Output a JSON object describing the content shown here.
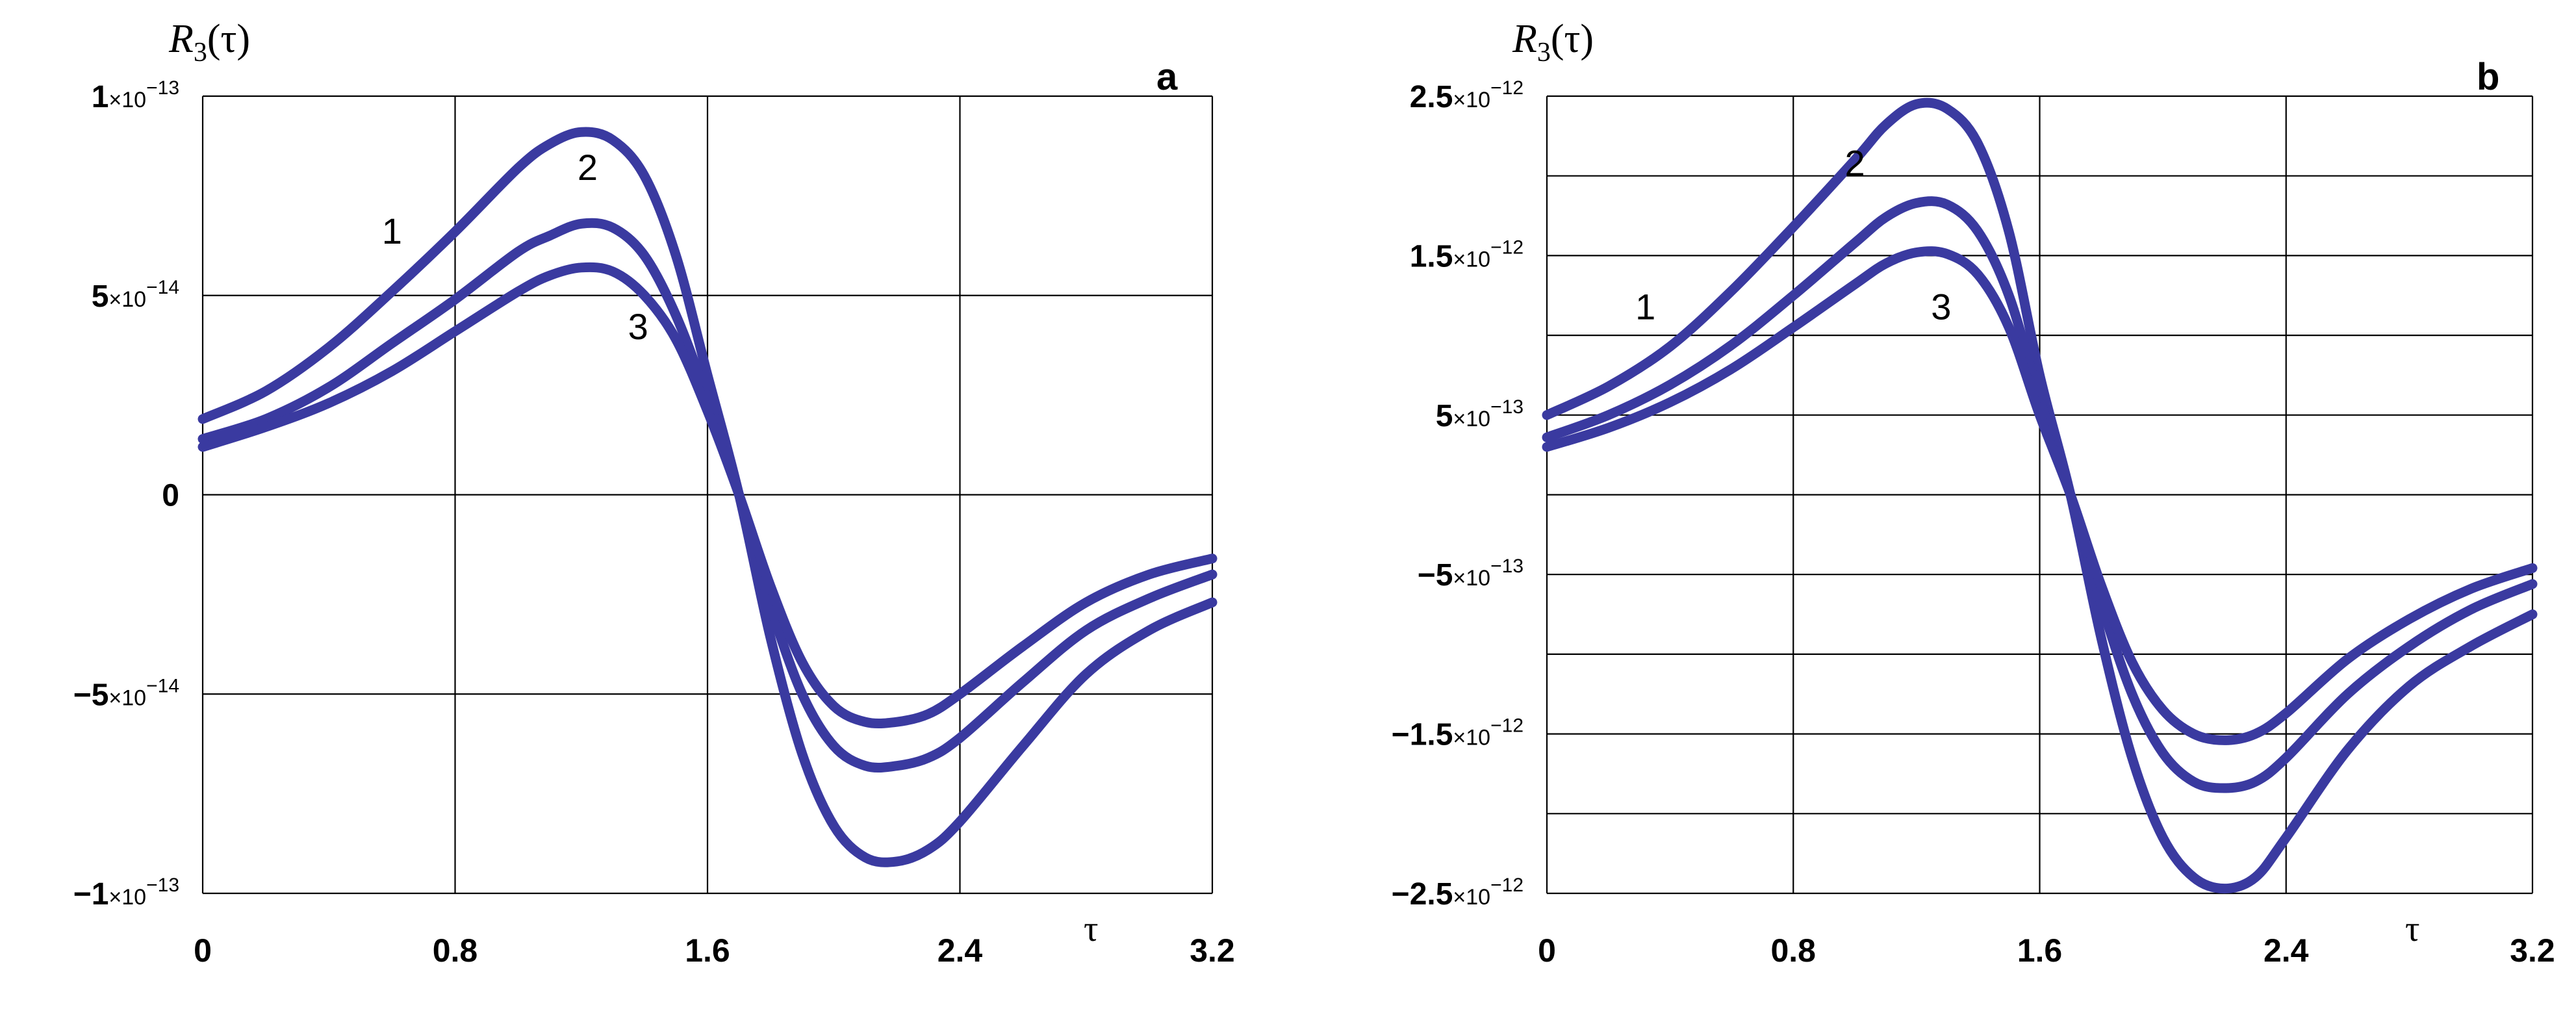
{
  "chart_data": [
    {
      "type": "line",
      "panel": "a",
      "ylabel": "R3(τ)",
      "xlabel": "τ",
      "xlim": [
        0,
        3.2
      ],
      "ylim": [
        -1e-13,
        1e-13
      ],
      "grid": true,
      "x_ticks": [
        0,
        0.8,
        1.6,
        2.4,
        3.2
      ],
      "x_tick_labels": [
        "0",
        "0.8",
        "1.6",
        "2.4",
        "3.2"
      ],
      "y_ticks": [
        {
          "value": 1e-13,
          "mant": "1",
          "exp": "−13"
        },
        {
          "value": 5e-14,
          "mant": "5",
          "exp": "−14"
        },
        {
          "value": 0,
          "mant": "0",
          "exp": ""
        },
        {
          "value": -5e-14,
          "mant": "−5",
          "exp": "−14"
        },
        {
          "value": -1e-13,
          "mant": "−1",
          "exp": "−13"
        }
      ],
      "curve_labels": [
        {
          "text": "1",
          "x": 0.6,
          "y": 6.3e-14
        },
        {
          "text": "2",
          "x": 1.22,
          "y": 7.9e-14
        },
        {
          "text": "3",
          "x": 1.38,
          "y": 3.9e-14
        }
      ],
      "series": [
        {
          "name": "1",
          "x": [
            0,
            0.2,
            0.4,
            0.6,
            0.8,
            1.0,
            1.1,
            1.2,
            1.3,
            1.4,
            1.5,
            1.6,
            1.7,
            1.8,
            1.9,
            2.0,
            2.1,
            2.2,
            2.3,
            2.4,
            2.6,
            2.8,
            3.0,
            3.2
          ],
          "y": [
            1.9e-14,
            2.6e-14,
            3.7e-14,
            5.1e-14,
            6.6e-14,
            8.2e-14,
            8.8e-14,
            9.1e-14,
            8.9e-14,
            8e-14,
            6e-14,
            3e-14,
            0,
            -3.6e-14,
            -6.5e-14,
            -8.3e-14,
            -9.1e-14,
            -9.2e-14,
            -8.9e-14,
            -8.2e-14,
            -6.3e-14,
            -4.5e-14,
            -3.4e-14,
            -2.7e-14
          ]
        },
        {
          "name": "2",
          "x": [
            0,
            0.2,
            0.4,
            0.6,
            0.8,
            1.0,
            1.1,
            1.2,
            1.3,
            1.4,
            1.5,
            1.6,
            1.7,
            1.8,
            1.9,
            2.0,
            2.1,
            2.2,
            2.3,
            2.4,
            2.6,
            2.8,
            3.0,
            3.2
          ],
          "y": [
            1.4e-14,
            1.9e-14,
            2.7e-14,
            3.8e-14,
            4.9e-14,
            6.1e-14,
            6.5e-14,
            6.8e-14,
            6.7e-14,
            6e-14,
            4.5e-14,
            2.4e-14,
            0,
            -2.8e-14,
            -5e-14,
            -6.3e-14,
            -6.8e-14,
            -6.8e-14,
            -6.6e-14,
            -6.1e-14,
            -4.7e-14,
            -3.4e-14,
            -2.6e-14,
            -2e-14
          ]
        },
        {
          "name": "3",
          "x": [
            0,
            0.2,
            0.4,
            0.6,
            0.8,
            1.0,
            1.1,
            1.2,
            1.3,
            1.4,
            1.5,
            1.6,
            1.7,
            1.8,
            1.9,
            2.0,
            2.1,
            2.2,
            2.3,
            2.4,
            2.6,
            2.8,
            3.0,
            3.2
          ],
          "y": [
            1.2e-14,
            1.7e-14,
            2.3e-14,
            3.1e-14,
            4.1e-14,
            5.1e-14,
            5.5e-14,
            5.7e-14,
            5.6e-14,
            5e-14,
            3.9e-14,
            2.1e-14,
            0,
            -2.3e-14,
            -4.2e-14,
            -5.3e-14,
            -5.7e-14,
            -5.7e-14,
            -5.5e-14,
            -5e-14,
            -3.8e-14,
            -2.7e-14,
            -2e-14,
            -1.6e-14
          ]
        }
      ]
    },
    {
      "type": "line",
      "panel": "b",
      "ylabel": "R3(τ)",
      "xlabel": "τ",
      "xlim": [
        0,
        3.2
      ],
      "ylim": [
        -2.5e-12,
        2.5e-12
      ],
      "grid": true,
      "x_ticks": [
        0,
        0.8,
        1.6,
        2.4,
        3.2
      ],
      "x_tick_labels": [
        "0",
        "0.8",
        "1.6",
        "2.4",
        "3.2"
      ],
      "y_ticks": [
        {
          "value": 2.5e-12,
          "mant": "2.5",
          "exp": "−12"
        },
        {
          "value": 1.5e-12,
          "mant": "1.5",
          "exp": "−12"
        },
        {
          "value": 5e-13,
          "mant": "5",
          "exp": "−13"
        },
        {
          "value": -5e-13,
          "mant": "−5",
          "exp": "−13"
        },
        {
          "value": -1.5e-12,
          "mant": "−1.5",
          "exp": "−12"
        },
        {
          "value": -2.5e-12,
          "mant": "−2.5",
          "exp": "−12"
        }
      ],
      "minor_grid_y": [
        2e-12,
        1e-12,
        0,
        -1e-12,
        -2e-12
      ],
      "curve_labels": [
        {
          "text": "1",
          "x": 0.32,
          "y": 1.1e-12
        },
        {
          "text": "2",
          "x": 1.0,
          "y": 2e-12
        },
        {
          "text": "3",
          "x": 1.28,
          "y": 1.1e-12
        }
      ],
      "series": [
        {
          "name": "1",
          "x": [
            0,
            0.2,
            0.4,
            0.6,
            0.8,
            1.0,
            1.1,
            1.2,
            1.3,
            1.4,
            1.5,
            1.6,
            1.7,
            1.8,
            1.9,
            2.0,
            2.1,
            2.2,
            2.3,
            2.4,
            2.6,
            2.8,
            3.0,
            3.2
          ],
          "y": [
            5e-13,
            6.8e-13,
            9.3e-13,
            1.28e-12,
            1.68e-12,
            2.1e-12,
            2.32e-12,
            2.45e-12,
            2.42e-12,
            2.2e-12,
            1.65e-12,
            7.5e-13,
            0,
            -9e-13,
            -1.65e-12,
            -2.15e-12,
            -2.4e-12,
            -2.47e-12,
            -2.4e-12,
            -2.15e-12,
            -1.6e-12,
            -1.2e-12,
            -9.5e-13,
            -7.5e-13
          ]
        },
        {
          "name": "2",
          "x": [
            0,
            0.2,
            0.4,
            0.6,
            0.8,
            1.0,
            1.1,
            1.2,
            1.3,
            1.4,
            1.5,
            1.6,
            1.7,
            1.8,
            1.9,
            2.0,
            2.1,
            2.2,
            2.3,
            2.4,
            2.6,
            2.8,
            3.0,
            3.2
          ],
          "y": [
            3.6e-13,
            5e-13,
            6.9e-13,
            9.4e-13,
            1.25e-12,
            1.58e-12,
            1.74e-12,
            1.83e-12,
            1.82e-12,
            1.65e-12,
            1.25e-12,
            6e-13,
            0,
            -6.8e-13,
            -1.25e-12,
            -1.62e-12,
            -1.8e-12,
            -1.84e-12,
            -1.8e-12,
            -1.65e-12,
            -1.25e-12,
            -9.5e-13,
            -7.2e-13,
            -5.6e-13
          ]
        },
        {
          "name": "3",
          "x": [
            0,
            0.2,
            0.4,
            0.6,
            0.8,
            1.0,
            1.1,
            1.2,
            1.3,
            1.4,
            1.5,
            1.6,
            1.7,
            1.8,
            1.9,
            2.0,
            2.1,
            2.2,
            2.3,
            2.4,
            2.6,
            2.8,
            3.0,
            3.2
          ],
          "y": [
            3e-13,
            4.2e-13,
            5.8e-13,
            7.9e-13,
            1.05e-12,
            1.32e-12,
            1.45e-12,
            1.52e-12,
            1.51e-12,
            1.38e-12,
            1.05e-12,
            5e-13,
            0,
            -5.7e-13,
            -1.05e-12,
            -1.35e-12,
            -1.5e-12,
            -1.54e-12,
            -1.5e-12,
            -1.37e-12,
            -1.03e-12,
            -7.8e-13,
            -5.9e-13,
            -4.6e-13
          ]
        }
      ]
    }
  ],
  "style": {
    "line_color": "#3a3aa0",
    "grid_color": "#000000"
  }
}
